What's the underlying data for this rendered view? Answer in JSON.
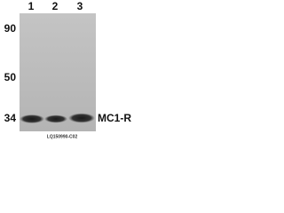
{
  "lanes": [
    "1",
    "2",
    "3"
  ],
  "markers": [
    "90",
    "50",
    "34"
  ],
  "band_label": "MC1-R",
  "catalog": "LQ150990-C02"
}
